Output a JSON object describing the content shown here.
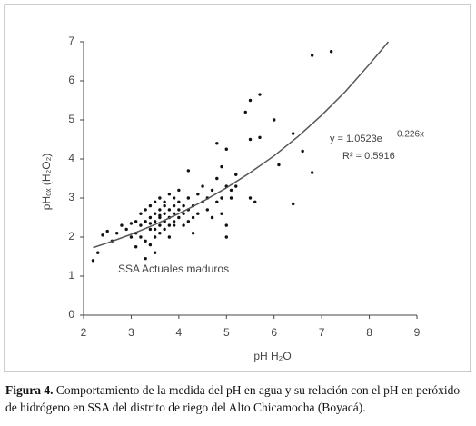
{
  "chart_data": {
    "type": "scatter",
    "x_label": "pH H₂O",
    "y_label": "pHₒₓ (H₂O₂)",
    "equation": "y = 1.0523e",
    "equation_exponent": "0.226x",
    "r_squared": "R² = 0.5916",
    "annotation": "SSA Actuales maduros",
    "color": "#111111",
    "x": [
      2.2,
      2.3,
      2.4,
      2.6,
      2.7,
      2.8,
      2.9,
      3.0,
      3.0,
      3.1,
      3.1,
      3.2,
      3.2,
      3.2,
      3.3,
      3.3,
      3.3,
      3.4,
      3.4,
      3.4,
      3.4,
      3.5,
      3.5,
      3.5,
      3.5,
      3.5,
      3.6,
      3.6,
      3.6,
      3.6,
      3.6,
      3.7,
      3.7,
      3.7,
      3.7,
      3.7,
      3.8,
      3.8,
      3.8,
      3.8,
      3.8,
      3.9,
      3.9,
      3.9,
      3.9,
      4.0,
      4.0,
      4.0,
      4.0,
      4.1,
      4.1,
      4.1,
      4.2,
      4.2,
      4.2,
      4.3,
      4.3,
      4.4,
      4.4,
      4.5,
      4.5,
      4.6,
      4.6,
      4.7,
      4.7,
      4.8,
      4.8,
      4.9,
      4.9,
      5.0,
      5.0,
      5.0,
      5.1,
      5.2,
      5.2,
      5.5,
      5.6,
      3.3,
      3.5,
      2.5,
      3.1,
      4.2,
      4.9,
      5.1,
      4.8,
      5.0,
      5.4,
      5.5,
      5.7,
      5.5,
      5.7,
      6.0,
      6.1,
      6.4,
      6.6,
      6.8,
      6.4,
      6.8,
      7.2,
      3.9,
      4.3,
      3.4,
      3.6
    ],
    "values": [
      1.4,
      1.6,
      2.05,
      1.9,
      2.1,
      2.3,
      2.2,
      2.35,
      2.0,
      2.4,
      2.1,
      2.3,
      2.6,
      2.0,
      2.7,
      2.4,
      1.45,
      2.5,
      2.8,
      2.2,
      1.8,
      2.6,
      2.9,
      2.4,
      2.2,
      1.6,
      2.7,
      2.5,
      2.3,
      3.0,
      2.1,
      2.6,
      2.8,
      2.4,
      2.9,
      2.2,
      2.7,
      2.5,
      3.1,
      2.3,
      2.0,
      2.6,
      2.8,
      2.4,
      3.0,
      2.7,
      2.5,
      2.9,
      3.2,
      2.6,
      2.8,
      2.3,
      2.7,
      3.0,
      3.7,
      2.8,
      2.5,
      3.1,
      2.6,
      2.9,
      3.3,
      2.7,
      3.0,
      3.2,
      2.5,
      2.9,
      3.5,
      3.0,
      3.8,
      3.3,
      2.0,
      2.3,
      3.0,
      3.3,
      3.6,
      3.0,
      2.9,
      1.9,
      2.0,
      2.15,
      1.75,
      2.4,
      2.6,
      3.2,
      4.4,
      4.25,
      5.2,
      4.5,
      4.55,
      5.5,
      5.65,
      5.0,
      3.85,
      4.65,
      4.2,
      3.65,
      2.85,
      6.65,
      6.75,
      2.3,
      2.1,
      2.35,
      2.55
    ],
    "trend": {
      "x": [
        2.2,
        2.5,
        3,
        3.5,
        4,
        4.5,
        5,
        5.5,
        6,
        6.5,
        7,
        7.5,
        8,
        8.4
      ],
      "values": [
        1.73,
        1.85,
        2.07,
        2.32,
        2.6,
        2.91,
        3.26,
        3.65,
        4.08,
        4.57,
        5.12,
        5.73,
        6.42,
        7.0
      ],
      "color": "#555555"
    },
    "xlim": [
      2,
      9
    ],
    "ylim": [
      0,
      7
    ],
    "xticks": [
      2,
      3,
      4,
      5,
      6,
      7,
      8,
      9
    ],
    "yticks": [
      0,
      1,
      2,
      3,
      4,
      5,
      6,
      7
    ]
  },
  "caption": {
    "label": "Figura 4.",
    "text": " Comportamiento de la medida del pH en agua y su relación con el pH en peróxido de hidrógeno en SSA del distrito de riego del Alto Chicamocha (Boyacá)."
  }
}
